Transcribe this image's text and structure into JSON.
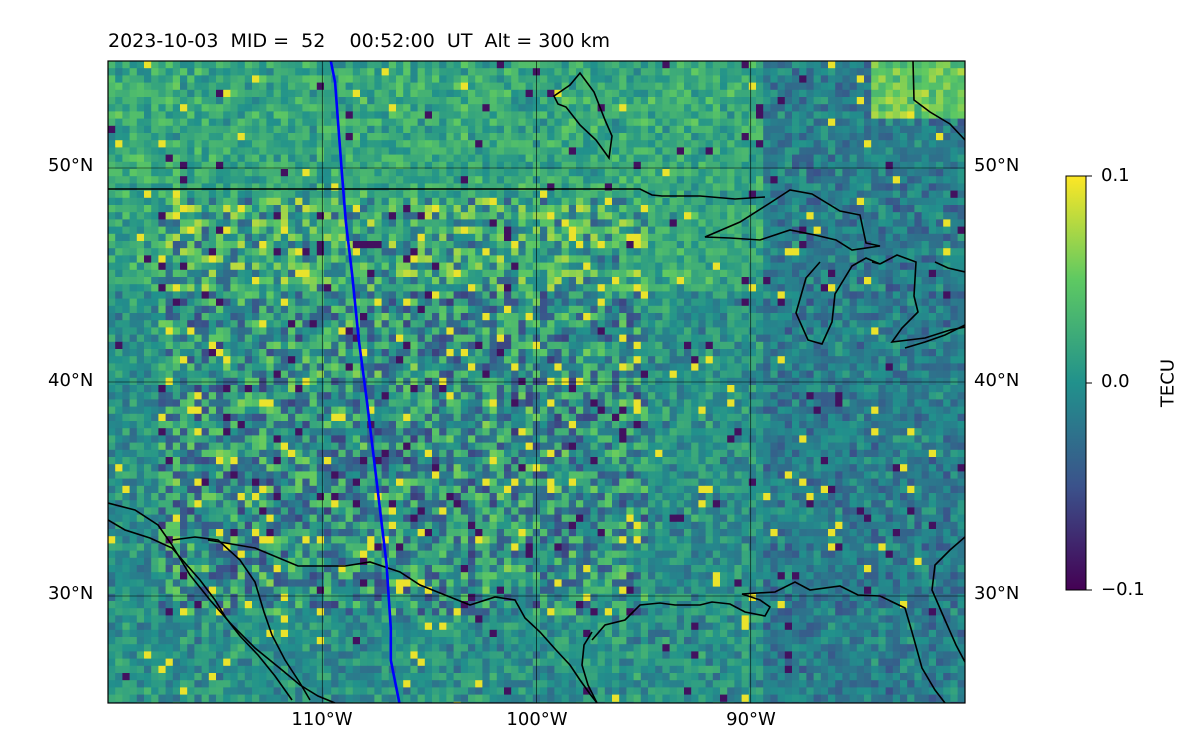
{
  "title": "2023-10-03  MID =  52    00:52:00  UT  Alt = 300 km",
  "map": {
    "lon_min": -120,
    "lon_max": -80,
    "lat_min": 25,
    "lat_max": 55,
    "lat_ticks": [
      {
        "value": 50,
        "label": "50°N"
      },
      {
        "value": 40,
        "label": "40°N"
      },
      {
        "value": 30,
        "label": "30°N"
      }
    ],
    "lon_ticks": [
      {
        "value": -110,
        "label": "110°W"
      },
      {
        "value": -100,
        "label": "100°W"
      },
      {
        "value": -90,
        "label": "90°W"
      }
    ],
    "grid": true,
    "field": "dTEC",
    "track_color": "#0000ff",
    "track": [
      [
        -109.6,
        55.0
      ],
      [
        -109.4,
        54.0
      ],
      [
        -109.1,
        50.0
      ],
      [
        -108.9,
        47.5
      ],
      [
        -108.6,
        45.0
      ],
      [
        -108.3,
        42.0
      ],
      [
        -107.9,
        39.0
      ],
      [
        -107.6,
        36.5
      ],
      [
        -107.3,
        34.0
      ],
      [
        -107.0,
        31.5
      ],
      [
        -106.8,
        28.5
      ],
      [
        -106.8,
        27.0
      ],
      [
        -106.4,
        25.0
      ]
    ]
  },
  "colorbar": {
    "label": "TECU",
    "min": -0.1,
    "max": 0.1,
    "ticks": [
      {
        "value": 0.1,
        "label": "0.1"
      },
      {
        "value": 0.0,
        "label": "0.0"
      },
      {
        "value": -0.1,
        "label": "−0.1"
      }
    ],
    "colormap": "viridis",
    "colors": [
      "#440154",
      "#3b528b",
      "#21918c",
      "#5ec962",
      "#fde725"
    ]
  }
}
